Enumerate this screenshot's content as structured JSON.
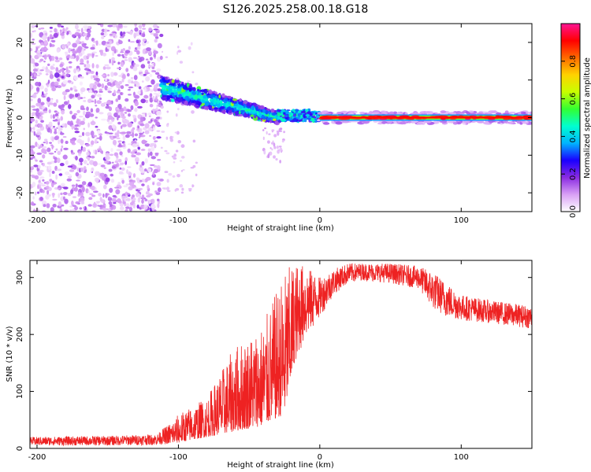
{
  "title": "S126.2025.258.00.18.G18",
  "chart_data": [
    {
      "type": "heatmap",
      "name": "spectrogram",
      "xlabel": "Height of straight line (km)",
      "ylabel": "Frequency (Hz)",
      "xlim": [
        -205,
        150
      ],
      "ylim": [
        -25,
        25
      ],
      "xticks": [
        -200,
        -100,
        0,
        100
      ],
      "yticks": [
        -20,
        -10,
        0,
        10,
        20
      ],
      "colorbar": {
        "label": "Normalized spectral amplitude",
        "range": [
          0,
          1
        ],
        "ticks": [
          "0.0",
          "0.2",
          "0.4",
          "0.6",
          "0.8"
        ],
        "tick_values": [
          0.0,
          0.2,
          0.4,
          0.6,
          0.8
        ],
        "colormap": [
          "#ffffff",
          "#d9a0f5",
          "#8a2be2",
          "#1a00ff",
          "#00b4ff",
          "#00ffd0",
          "#32ff32",
          "#c8ff00",
          "#ffd200",
          "#ff6a00",
          "#ff0000",
          "#ff1493"
        ]
      },
      "regions": [
        {
          "x": [
            -205,
            -112
          ],
          "f": [
            -25,
            25
          ],
          "amp": 0.12,
          "desc": "noise scatter"
        },
        {
          "x": [
            -112,
            -30
          ],
          "f_start": [
            8,
            4
          ],
          "f_end": [
            -1,
            1
          ],
          "amp": 0.45,
          "desc": "descending multipath band"
        },
        {
          "x": [
            -30,
            0
          ],
          "f": [
            -1,
            2
          ],
          "amp": 0.5,
          "desc": "converging band"
        },
        {
          "x": [
            0,
            150
          ],
          "f": [
            0,
            0
          ],
          "amp": 0.95,
          "desc": "direct signal at 0 Hz"
        }
      ]
    },
    {
      "type": "line",
      "name": "snr",
      "xlabel": "Height of straight line (km)",
      "ylabel": "SNR (10 * v/v)",
      "xlim": [
        -205,
        150
      ],
      "ylim": [
        0,
        330
      ],
      "xticks": [
        -200,
        -100,
        0,
        100
      ],
      "yticks": [
        0,
        100,
        200,
        300
      ],
      "color": "#ee2222",
      "envelope": {
        "x": [
          -205,
          -150,
          -115,
          -100,
          -80,
          -60,
          -40,
          -25,
          -18,
          -10,
          0,
          10,
          20,
          30,
          50,
          70,
          80,
          90,
          100,
          120,
          150
        ],
        "lower": [
          5,
          5,
          6,
          10,
          20,
          30,
          40,
          60,
          150,
          190,
          230,
          270,
          290,
          295,
          290,
          280,
          245,
          230,
          225,
          220,
          210
        ],
        "upper": [
          20,
          22,
          25,
          60,
          90,
          180,
          220,
          310,
          330,
          320,
          300,
          315,
          325,
          325,
          325,
          320,
          310,
          290,
          270,
          260,
          250
        ]
      }
    }
  ]
}
